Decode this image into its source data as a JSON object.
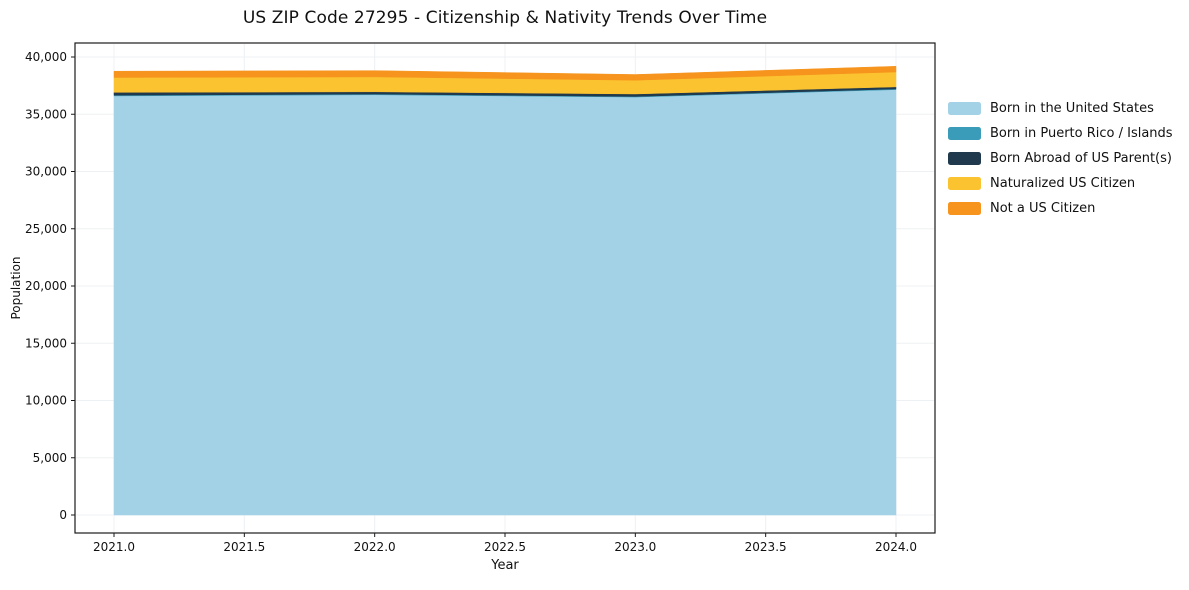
{
  "chart_data": {
    "type": "area",
    "stacked": true,
    "title": "US ZIP Code 27295 - Citizenship & Nativity Trends Over Time",
    "xlabel": "Year",
    "ylabel": "Population",
    "x": [
      2021,
      2022,
      2023,
      2024
    ],
    "series": [
      {
        "name": "Born in the United States",
        "color": "#a3d2e7",
        "values": [
          36600,
          36700,
          36500,
          37150
        ]
      },
      {
        "name": "Born in Puerto Rico / Islands",
        "color": "#3b9cb9",
        "values": [
          60,
          60,
          50,
          60
        ]
      },
      {
        "name": "Born Abroad of US Parent(s)",
        "color": "#20394c",
        "values": [
          250,
          200,
          220,
          180
        ]
      },
      {
        "name": "Naturalized US Citizen",
        "color": "#fcc330",
        "values": [
          1300,
          1300,
          1200,
          1300
        ]
      },
      {
        "name": "Not a US Citizen",
        "color": "#f6941d",
        "values": [
          550,
          550,
          500,
          500
        ]
      }
    ],
    "xlim": [
      2020.85,
      2024.15
    ],
    "ylim": [
      0,
      40000
    ],
    "xticks": [
      2021.0,
      2021.5,
      2022.0,
      2022.5,
      2023.0,
      2023.5,
      2024.0
    ],
    "yticks": [
      0,
      5000,
      10000,
      15000,
      20000,
      25000,
      30000,
      35000,
      40000
    ],
    "grid": true,
    "legend_position": "right"
  }
}
